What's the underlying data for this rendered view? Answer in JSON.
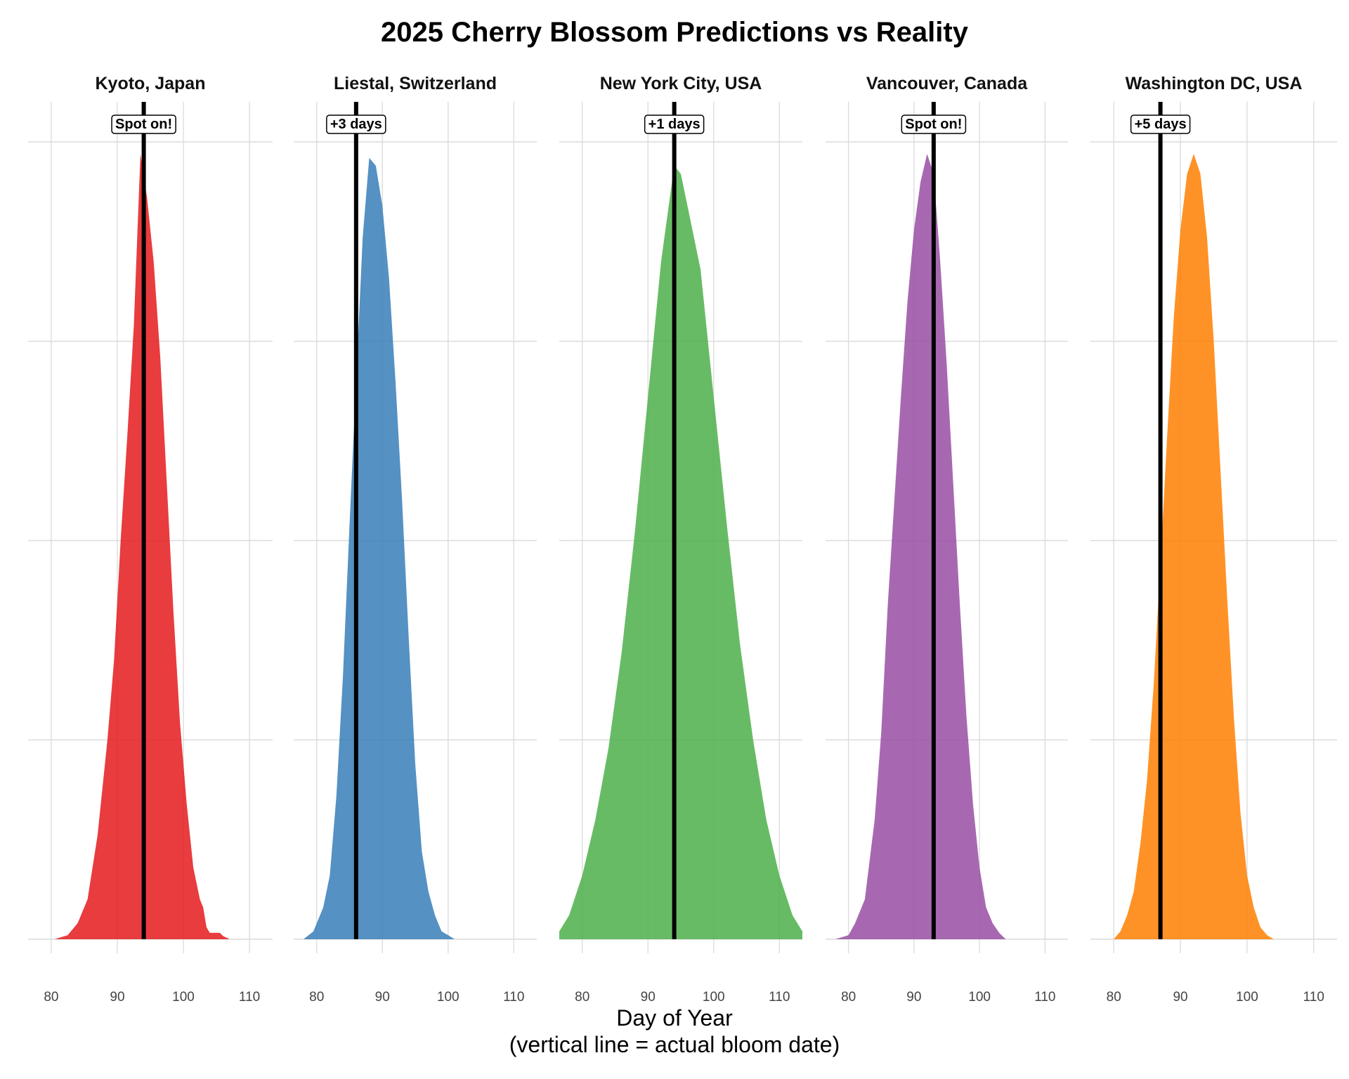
{
  "title": "2025 Cherry Blossom Predictions vs Reality",
  "x_axis_label_line1": "Day of Year",
  "x_axis_label_line2": "(vertical line = actual bloom date)",
  "chart_data": {
    "type": "area",
    "title": "2025 Cherry Blossom Predictions vs Reality",
    "xlabel": "Day of Year (vertical line = actual bloom date)",
    "ylabel": "",
    "xlim": [
      76.5,
      113.5
    ],
    "x_ticks": [
      "80",
      "90",
      "100",
      "110"
    ],
    "x_tick_values": [
      80,
      90,
      100,
      110
    ],
    "grid": true,
    "facets": [
      {
        "name": "Kyoto, Japan",
        "color": "#E41A1C",
        "actual_bloom_day": 94,
        "annotation": "Spot on!",
        "ygrid": [
          0.0,
          0.25,
          0.5,
          0.75,
          1.0
        ],
        "density": [
          [
            80.5,
            0
          ],
          [
            82.5,
            0.005
          ],
          [
            84,
            0.02
          ],
          [
            85.5,
            0.05
          ],
          [
            87,
            0.13
          ],
          [
            88.5,
            0.25
          ],
          [
            89.5,
            0.35
          ],
          [
            90.5,
            0.5
          ],
          [
            91.5,
            0.63
          ],
          [
            92.5,
            0.77
          ],
          [
            93.5,
            0.985
          ],
          [
            94.5,
            0.93
          ],
          [
            95.5,
            0.85
          ],
          [
            96.5,
            0.73
          ],
          [
            97.5,
            0.57
          ],
          [
            98.5,
            0.41
          ],
          [
            99.5,
            0.27
          ],
          [
            100.5,
            0.17
          ],
          [
            101.5,
            0.09
          ],
          [
            102.5,
            0.05
          ],
          [
            103,
            0.04
          ],
          [
            103.5,
            0.015
          ],
          [
            104,
            0.008
          ],
          [
            105.5,
            0.008
          ],
          [
            106,
            0.004
          ],
          [
            107,
            0
          ]
        ]
      },
      {
        "name": "Liestal, Switzerland",
        "color": "#377EB8",
        "actual_bloom_day": 86,
        "annotation": "+3 days",
        "ygrid": [
          0.0,
          0.25,
          0.5,
          0.75,
          1.0
        ],
        "density": [
          [
            78,
            0
          ],
          [
            79.5,
            0.01
          ],
          [
            81,
            0.04
          ],
          [
            82,
            0.08
          ],
          [
            83,
            0.18
          ],
          [
            84,
            0.33
          ],
          [
            85,
            0.52
          ],
          [
            86,
            0.7
          ],
          [
            87,
            0.88
          ],
          [
            88,
            0.98
          ],
          [
            89,
            0.97
          ],
          [
            90,
            0.92
          ],
          [
            91,
            0.83
          ],
          [
            92,
            0.7
          ],
          [
            93,
            0.55
          ],
          [
            94,
            0.38
          ],
          [
            95,
            0.22
          ],
          [
            96,
            0.11
          ],
          [
            97,
            0.06
          ],
          [
            98,
            0.03
          ],
          [
            99,
            0.01
          ],
          [
            100,
            0.005
          ],
          [
            101,
            0
          ]
        ]
      },
      {
        "name": "New York City, USA",
        "color": "#4DAF4A",
        "actual_bloom_day": 94,
        "annotation": "+1 days",
        "ygrid": [
          0.0,
          0.25,
          0.5,
          0.75,
          1.0
        ],
        "density": [
          [
            76.5,
            0.01
          ],
          [
            78,
            0.03
          ],
          [
            80,
            0.08
          ],
          [
            82,
            0.15
          ],
          [
            84,
            0.24
          ],
          [
            86,
            0.36
          ],
          [
            88,
            0.51
          ],
          [
            90,
            0.68
          ],
          [
            92,
            0.85
          ],
          [
            94,
            0.97
          ],
          [
            95,
            0.96
          ],
          [
            96,
            0.92
          ],
          [
            98,
            0.84
          ],
          [
            100,
            0.68
          ],
          [
            102,
            0.52
          ],
          [
            104,
            0.37
          ],
          [
            106,
            0.25
          ],
          [
            108,
            0.15
          ],
          [
            110,
            0.08
          ],
          [
            112,
            0.03
          ],
          [
            113.5,
            0.01
          ]
        ]
      },
      {
        "name": "Vancouver, Canada",
        "color": "#984EA3",
        "actual_bloom_day": 93,
        "annotation": "Spot on!",
        "ygrid": [
          0.0,
          0.25,
          0.5,
          0.75,
          1.0
        ],
        "density": [
          [
            78,
            0
          ],
          [
            80,
            0.005
          ],
          [
            81,
            0.02
          ],
          [
            82.5,
            0.05
          ],
          [
            84,
            0.15
          ],
          [
            85,
            0.26
          ],
          [
            86,
            0.42
          ],
          [
            87,
            0.55
          ],
          [
            88,
            0.68
          ],
          [
            89,
            0.8
          ],
          [
            90,
            0.89
          ],
          [
            91,
            0.95
          ],
          [
            92,
            0.985
          ],
          [
            93,
            0.96
          ],
          [
            94,
            0.85
          ],
          [
            95,
            0.72
          ],
          [
            96,
            0.57
          ],
          [
            97,
            0.42
          ],
          [
            98,
            0.28
          ],
          [
            99,
            0.17
          ],
          [
            100,
            0.09
          ],
          [
            101,
            0.04
          ],
          [
            102,
            0.02
          ],
          [
            103,
            0.008
          ],
          [
            104,
            0
          ]
        ]
      },
      {
        "name": "Washington DC, USA",
        "color": "#FF7F00",
        "actual_bloom_day": 87,
        "annotation": "+5 days",
        "ygrid": [
          0.0,
          0.25,
          0.5,
          0.75,
          1.0
        ],
        "density": [
          [
            80,
            0
          ],
          [
            81,
            0.01
          ],
          [
            82,
            0.03
          ],
          [
            83,
            0.06
          ],
          [
            84,
            0.12
          ],
          [
            85,
            0.2
          ],
          [
            86,
            0.32
          ],
          [
            87,
            0.47
          ],
          [
            88,
            0.63
          ],
          [
            89,
            0.78
          ],
          [
            90,
            0.89
          ],
          [
            91,
            0.96
          ],
          [
            92,
            0.985
          ],
          [
            93,
            0.96
          ],
          [
            94,
            0.88
          ],
          [
            95,
            0.75
          ],
          [
            96,
            0.59
          ],
          [
            97,
            0.43
          ],
          [
            98,
            0.28
          ],
          [
            99,
            0.16
          ],
          [
            100,
            0.08
          ],
          [
            101,
            0.04
          ],
          [
            102,
            0.015
          ],
          [
            103,
            0.005
          ],
          [
            104,
            0
          ]
        ]
      }
    ]
  }
}
